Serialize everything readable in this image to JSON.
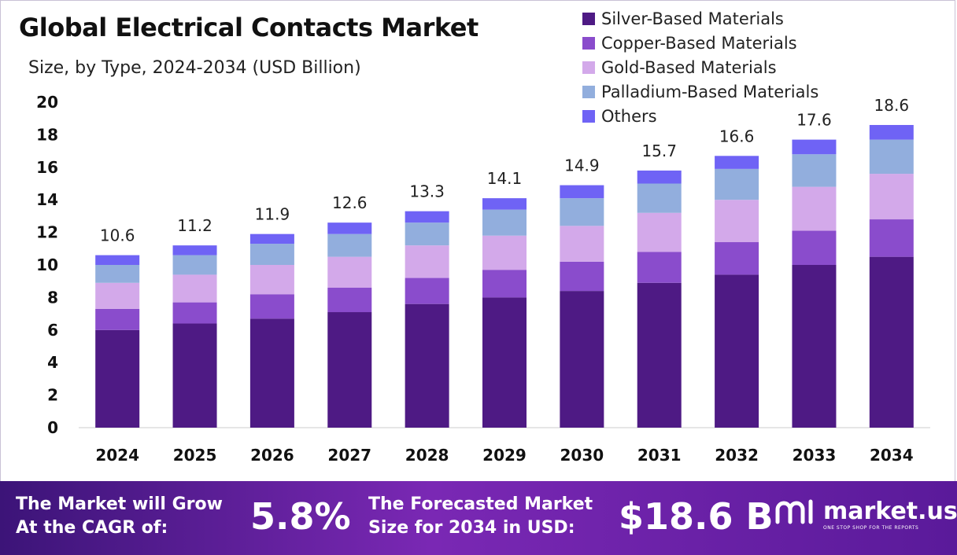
{
  "header": {
    "title": "Global Electrical Contacts Market",
    "subtitle": "Size, by Type, 2024-2034 (USD Billion)"
  },
  "chart_data": {
    "type": "bar",
    "stacked": true,
    "title": "Global Electrical Contacts Market",
    "subtitle": "Size, by Type, 2024-2034 (USD Billion)",
    "categories": [
      "2024",
      "2025",
      "2026",
      "2027",
      "2028",
      "2029",
      "2030",
      "2031",
      "2032",
      "2033",
      "2034"
    ],
    "series": [
      {
        "name": "Silver-Based Materials",
        "color": "#4e1a84",
        "values": [
          6.0,
          6.4,
          6.7,
          7.1,
          7.6,
          8.0,
          8.4,
          8.9,
          9.4,
          10.0,
          10.5
        ]
      },
      {
        "name": "Copper-Based Materials",
        "color": "#8a4ccc",
        "values": [
          1.3,
          1.3,
          1.5,
          1.5,
          1.6,
          1.7,
          1.8,
          1.9,
          2.0,
          2.1,
          2.3
        ]
      },
      {
        "name": "Gold-Based Materials",
        "color": "#d3a9ea",
        "values": [
          1.6,
          1.7,
          1.8,
          1.9,
          2.0,
          2.1,
          2.2,
          2.4,
          2.6,
          2.7,
          2.8
        ]
      },
      {
        "name": "Palladium-Based Materials",
        "color": "#92aedd",
        "values": [
          1.1,
          1.2,
          1.3,
          1.4,
          1.4,
          1.6,
          1.7,
          1.8,
          1.9,
          2.0,
          2.1
        ]
      },
      {
        "name": "Others",
        "color": "#6f63f5",
        "values": [
          0.6,
          0.6,
          0.6,
          0.7,
          0.7,
          0.7,
          0.8,
          0.8,
          0.8,
          0.9,
          0.9
        ]
      }
    ],
    "totals": [
      "10.6",
      "11.2",
      "11.9",
      "12.6",
      "13.3",
      "14.1",
      "14.9",
      "15.7",
      "16.6",
      "17.6",
      "18.6"
    ],
    "ylim": [
      0,
      20
    ],
    "yticks": [
      "0",
      "2",
      "4",
      "6",
      "8",
      "10",
      "12",
      "14",
      "16",
      "18",
      "20"
    ],
    "xlabel": "",
    "ylabel": "",
    "legend_position": "top-right",
    "grid": false
  },
  "footer": {
    "cagr_label_line1": "The Market will Grow",
    "cagr_label_line2": "At the CAGR of:",
    "cagr_value": "5.8%",
    "forecast_label_line1": "The Forecasted Market",
    "forecast_label_line2": "Size for 2034 in USD:",
    "forecast_value": "$18.6 B",
    "brand_name": "market.us",
    "brand_tagline": "ONE STOP SHOP FOR THE REPORTS"
  }
}
